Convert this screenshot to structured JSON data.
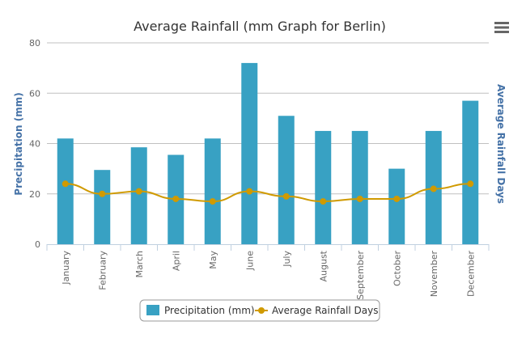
{
  "chart_data": {
    "type": "bar+line",
    "title": "Average Rainfall (mm Graph for Berlin)",
    "categories": [
      "January",
      "February",
      "March",
      "April",
      "May",
      "June",
      "July",
      "August",
      "September",
      "October",
      "November",
      "December"
    ],
    "ylabel": "Precipitation (mm)",
    "y2label": "Average Rainfall Days",
    "ylim": [
      0,
      80
    ],
    "yticks": [
      "0",
      "20",
      "40",
      "60",
      "80"
    ],
    "grid": true,
    "legend_position": "bottom",
    "series": [
      {
        "name": "Precipitation (mm)",
        "type": "bar",
        "color": "#38a1c3",
        "values": [
          42,
          29.5,
          38.5,
          35.5,
          42,
          72,
          51,
          45,
          45,
          30,
          45,
          57
        ]
      },
      {
        "name": "Average Rainfall Days",
        "type": "line",
        "color": "#d09a00",
        "values": [
          24,
          20,
          21,
          18,
          17,
          21,
          19,
          17,
          18,
          18,
          22,
          24
        ]
      }
    ]
  },
  "menu_icon": "hamburger-menu-icon"
}
